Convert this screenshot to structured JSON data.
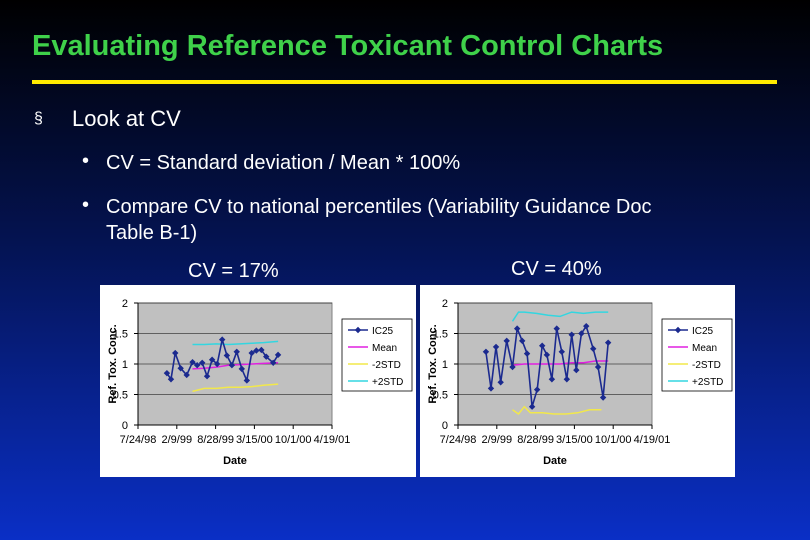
{
  "slide": {
    "title": "Evaluating Reference Toxicant Control Charts",
    "bullet_marker": "§",
    "sub_marker": "•",
    "bullet1": "Look at CV",
    "sub1": "CV = Standard deviation / Mean * 100%",
    "sub2_line1": "Compare CV to national percentiles (Variability Guidance Doc",
    "sub2_line2": "Table B-1)",
    "cv_left": "CV = 17%",
    "cv_right": "CV = 40%"
  },
  "colors": {
    "title": "#3fd14a",
    "rule": "#ffea00",
    "ic25": "#1b2a8f",
    "mean": "#e020e0",
    "minus2std": "#f2e84a",
    "plus2std": "#33d6e0",
    "plot_bg": "#c0c0c0"
  },
  "chart_data": [
    {
      "type": "line",
      "title": "",
      "xlabel": "Date",
      "ylabel": "Ref. Tox. Conc.",
      "x_ticks": [
        "7/24/98",
        "2/9/99",
        "8/28/99",
        "3/15/00",
        "10/1/00",
        "4/19/01"
      ],
      "ylim": [
        0,
        2
      ],
      "y_ticks": [
        "0",
        "0.5",
        "1",
        "1.5",
        "2"
      ],
      "grid": "horizontal",
      "legend": "right",
      "series": [
        {
          "name": "IC25",
          "color": "#1b2a8f",
          "marker": "diamond",
          "x": [
            "1998-12-20",
            "1999-01-10",
            "1999-02-01",
            "1999-03-01",
            "1999-04-01",
            "1999-05-01",
            "1999-05-25",
            "1999-06-20",
            "1999-07-15",
            "1999-08-10",
            "1999-09-05",
            "1999-10-01",
            "1999-10-25",
            "1999-11-20",
            "1999-12-15",
            "2000-01-10",
            "2000-02-05",
            "2000-03-01",
            "2000-03-25",
            "2000-04-20",
            "2000-05-15",
            "2000-06-20",
            "2000-07-15"
          ],
          "y": [
            0.85,
            0.75,
            1.18,
            0.93,
            0.82,
            1.03,
            0.98,
            1.02,
            0.8,
            1.07,
            1.0,
            1.4,
            1.14,
            0.98,
            1.2,
            0.92,
            0.73,
            1.18,
            1.22,
            1.23,
            1.12,
            1.02,
            1.15
          ]
        },
        {
          "name": "Mean",
          "color": "#e020e0",
          "x": [
            "1999-05-01",
            "1999-07-01",
            "1999-09-01",
            "1999-11-01",
            "2000-01-01",
            "2000-03-01",
            "2000-05-01",
            "2000-07-15"
          ],
          "y": [
            0.92,
            0.93,
            0.95,
            0.98,
            0.99,
            1.0,
            1.01,
            1.02
          ]
        },
        {
          "name": "-2STD",
          "color": "#f2e84a",
          "x": [
            "1999-05-01",
            "1999-07-01",
            "1999-09-01",
            "1999-11-01",
            "2000-01-01",
            "2000-03-01",
            "2000-05-01",
            "2000-07-15"
          ],
          "y": [
            0.55,
            0.6,
            0.6,
            0.62,
            0.62,
            0.63,
            0.65,
            0.67
          ]
        },
        {
          "name": "+2STD",
          "color": "#33d6e0",
          "x": [
            "1999-05-01",
            "1999-07-01",
            "1999-09-01",
            "1999-11-01",
            "2000-01-01",
            "2000-03-01",
            "2000-05-01",
            "2000-07-15"
          ],
          "y": [
            1.32,
            1.32,
            1.33,
            1.32,
            1.33,
            1.34,
            1.35,
            1.37
          ]
        }
      ]
    },
    {
      "type": "line",
      "title": "",
      "xlabel": "Date",
      "ylabel": "Ref. Tox. Conc.",
      "x_ticks": [
        "7/24/98",
        "2/9/99",
        "8/28/99",
        "3/15/00",
        "10/1/00",
        "4/19/01"
      ],
      "ylim": [
        0,
        2
      ],
      "y_ticks": [
        "0",
        "0.5",
        "1",
        "1.5",
        "2"
      ],
      "grid": "horizontal",
      "legend": "right",
      "series": [
        {
          "name": "IC25",
          "color": "#1b2a8f",
          "marker": "diamond",
          "x": [
            "1998-12-15",
            "1999-01-10",
            "1999-02-05",
            "1999-03-01",
            "1999-04-01",
            "1999-05-01",
            "1999-05-25",
            "1999-06-20",
            "1999-07-15",
            "1999-08-10",
            "1999-09-05",
            "1999-10-01",
            "1999-10-25",
            "1999-11-20",
            "1999-12-15",
            "2000-01-10",
            "2000-02-05",
            "2000-03-01",
            "2000-03-25",
            "2000-04-20",
            "2000-05-15",
            "2000-06-20",
            "2000-07-15",
            "2000-08-10",
            "2000-09-05"
          ],
          "y": [
            1.2,
            0.6,
            1.28,
            0.7,
            1.38,
            0.95,
            1.58,
            1.38,
            1.17,
            0.3,
            0.58,
            1.3,
            1.15,
            0.75,
            1.58,
            1.2,
            0.75,
            1.48,
            0.9,
            1.5,
            1.62,
            1.25,
            0.95,
            0.45,
            1.35
          ]
        },
        {
          "name": "Mean",
          "color": "#e020e0",
          "x": [
            "1999-05-01",
            "1999-07-01",
            "1999-09-01",
            "1999-11-01",
            "2000-01-01",
            "2000-03-01",
            "2000-05-01",
            "2000-07-01",
            "2000-09-05"
          ],
          "y": [
            0.98,
            1.0,
            1.0,
            1.0,
            1.0,
            1.02,
            1.02,
            1.05,
            1.05
          ]
        },
        {
          "name": "-2STD",
          "color": "#f2e84a",
          "x": [
            "1999-05-01",
            "1999-06-01",
            "1999-07-01",
            "1999-08-01",
            "1999-10-01",
            "1999-12-01",
            "2000-02-01",
            "2000-04-01",
            "2000-06-01",
            "2000-08-01"
          ],
          "y": [
            0.25,
            0.18,
            0.3,
            0.2,
            0.2,
            0.18,
            0.18,
            0.2,
            0.25,
            0.25
          ]
        },
        {
          "name": "+2STD",
          "color": "#33d6e0",
          "x": [
            "1999-05-01",
            "1999-06-01",
            "1999-07-01",
            "1999-09-01",
            "1999-11-01",
            "2000-01-01",
            "2000-03-01",
            "2000-05-01",
            "2000-07-01",
            "2000-09-05"
          ],
          "y": [
            1.7,
            1.85,
            1.85,
            1.83,
            1.8,
            1.78,
            1.85,
            1.83,
            1.85,
            1.85
          ]
        }
      ]
    }
  ]
}
